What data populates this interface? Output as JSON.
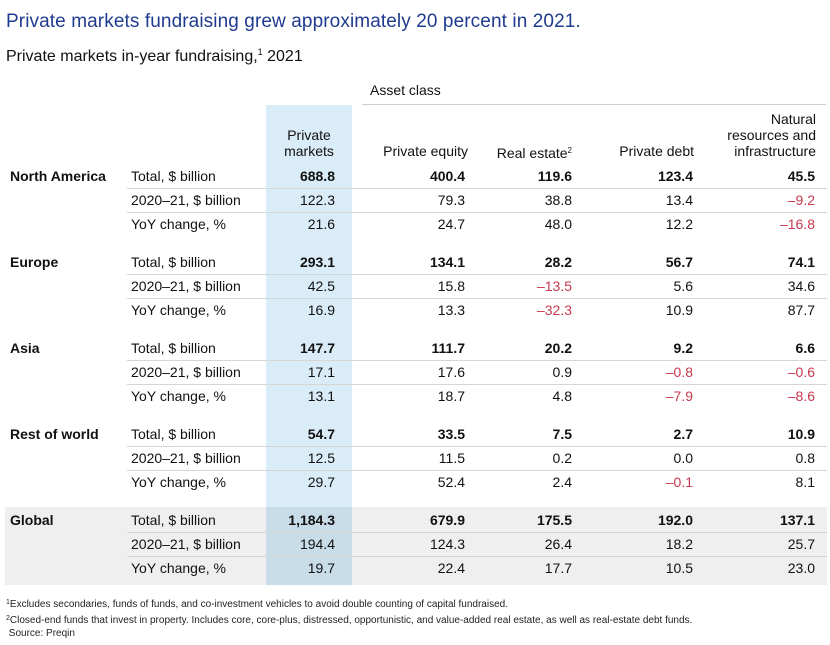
{
  "title": "Private markets fundraising grew approximately 20 percent in 2021.",
  "subtitle": {
    "text": "Private markets in-year fundraising,",
    "sup": "1",
    "year": " 2021"
  },
  "asset_class_label": "Asset class",
  "columns": {
    "private_markets": [
      "Private",
      "markets"
    ],
    "private_equity": "Private equity",
    "real_estate": "Real estate",
    "real_estate_sup": "2",
    "private_debt": "Private debt",
    "natural": [
      "Natural",
      "resources and",
      "infrastructure"
    ]
  },
  "regions": [
    {
      "name": "North America",
      "rows": [
        {
          "metric": "Total, $ billion",
          "values": [
            "688.8",
            "400.4",
            "119.6",
            "123.4",
            "45.5"
          ]
        },
        {
          "metric": "2020–21, $ billion",
          "values": [
            "122.3",
            "79.3",
            "38.8",
            "13.4",
            "–9.2"
          ]
        },
        {
          "metric": "YoY change, %",
          "values": [
            "21.6",
            "24.7",
            "48.0",
            "12.2",
            "–16.8"
          ]
        }
      ]
    },
    {
      "name": "Europe",
      "rows": [
        {
          "metric": "Total, $ billion",
          "values": [
            "293.1",
            "134.1",
            "28.2",
            "56.7",
            "74.1"
          ]
        },
        {
          "metric": "2020–21, $ billion",
          "values": [
            "42.5",
            "15.8",
            "–13.5",
            "5.6",
            "34.6"
          ]
        },
        {
          "metric": "YoY change, %",
          "values": [
            "16.9",
            "13.3",
            "–32.3",
            "10.9",
            "87.7"
          ]
        }
      ]
    },
    {
      "name": "Asia",
      "rows": [
        {
          "metric": "Total, $ billion",
          "values": [
            "147.7",
            "111.7",
            "20.2",
            "9.2",
            "6.6"
          ]
        },
        {
          "metric": "2020–21, $ billion",
          "values": [
            "17.1",
            "17.6",
            "0.9",
            "–0.8",
            "–0.6"
          ]
        },
        {
          "metric": "YoY change, %",
          "values": [
            "13.1",
            "18.7",
            "4.8",
            "–7.9",
            "–8.6"
          ]
        }
      ]
    },
    {
      "name": "Rest of world",
      "rows": [
        {
          "metric": "Total, $ billion",
          "values": [
            "54.7",
            "33.5",
            "7.5",
            "2.7",
            "10.9"
          ]
        },
        {
          "metric": "2020–21, $ billion",
          "values": [
            "12.5",
            "11.5",
            "0.2",
            "0.0",
            "0.8"
          ]
        },
        {
          "metric": "YoY change, %",
          "values": [
            "29.7",
            "52.4",
            "2.4",
            "–0.1",
            "8.1"
          ]
        }
      ]
    },
    {
      "name": "Global",
      "rows": [
        {
          "metric": "Total, $ billion",
          "values": [
            "1,184.3",
            "679.9",
            "175.5",
            "192.0",
            "137.1"
          ]
        },
        {
          "metric": "2020–21, $ billion",
          "values": [
            "194.4",
            "124.3",
            "26.4",
            "18.2",
            "25.7"
          ]
        },
        {
          "metric": "YoY change, %",
          "values": [
            "19.7",
            "22.4",
            "17.7",
            "10.5",
            "23.0"
          ]
        }
      ]
    }
  ],
  "footnotes": [
    {
      "sup": "1",
      "text": "Excludes secondaries, funds of funds, and co-investment vehicles to avoid double counting of capital fundraised."
    },
    {
      "sup": "2",
      "text": "Closed-end funds that invest in property. Includes core, core-plus, distressed, opportunistic, and value-added real estate, as well as real-estate debt funds."
    },
    {
      "sup": "",
      "text": "Source: Preqin"
    }
  ],
  "colors": {
    "title": "#1f3b8f",
    "negative": "#c8384e",
    "highlight_column": "#daecf7",
    "global_band": "#efefef"
  }
}
